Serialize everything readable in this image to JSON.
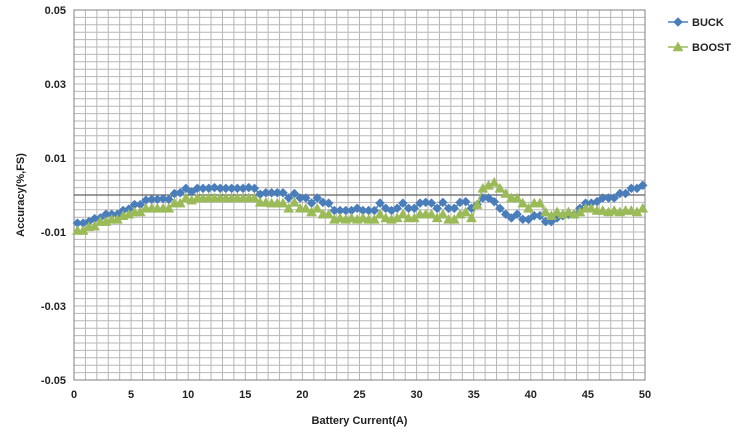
{
  "chart_data": {
    "type": "line",
    "xlabel": "Battery Current(A)",
    "ylabel": "Accuracy(%,FS)",
    "xlim": [
      0,
      50
    ],
    "ylim": [
      -0.05,
      0.05
    ],
    "x_ticks": [
      "0",
      "5",
      "10",
      "15",
      "20",
      "25",
      "30",
      "35",
      "40",
      "45",
      "50"
    ],
    "y_ticks": [
      "0.05",
      "0.03",
      "0.01",
      "-0.01",
      "-0.03",
      "-0.05"
    ],
    "x_tick_values": [
      0,
      5,
      10,
      15,
      20,
      25,
      30,
      35,
      40,
      45,
      50
    ],
    "y_tick_values": [
      0.05,
      0.03,
      0.01,
      -0.01,
      -0.03,
      -0.05
    ],
    "grid": true,
    "legend_position": "top-right",
    "series": [
      {
        "name": "BUCK",
        "color": "#4a7ebb",
        "marker": "diamond",
        "points": [
          [
            0.3,
            -0.0076
          ],
          [
            0.8,
            -0.0076
          ],
          [
            1.3,
            -0.0072
          ],
          [
            1.8,
            -0.0064
          ],
          [
            2.3,
            -0.0062
          ],
          [
            2.8,
            -0.0052
          ],
          [
            3.3,
            -0.0052
          ],
          [
            3.8,
            -0.0052
          ],
          [
            4.3,
            -0.0042
          ],
          [
            4.8,
            -0.0038
          ],
          [
            5.3,
            -0.0026
          ],
          [
            5.8,
            -0.0026
          ],
          [
            6.3,
            -0.0014
          ],
          [
            6.8,
            -0.0012
          ],
          [
            7.3,
            -0.0012
          ],
          [
            7.8,
            -0.001
          ],
          [
            8.3,
            -0.0012
          ],
          [
            8.8,
            0.0004
          ],
          [
            9.3,
            0.0006
          ],
          [
            9.8,
            0.0018
          ],
          [
            10.3,
            0.0008
          ],
          [
            10.8,
            0.0018
          ],
          [
            11.3,
            0.0018
          ],
          [
            11.8,
            0.0018
          ],
          [
            12.3,
            0.002
          ],
          [
            12.8,
            0.0018
          ],
          [
            13.3,
            0.0018
          ],
          [
            13.8,
            0.0018
          ],
          [
            14.3,
            0.0018
          ],
          [
            14.8,
            0.0018
          ],
          [
            15.3,
            0.002
          ],
          [
            15.8,
            0.0018
          ],
          [
            16.3,
            0.0002
          ],
          [
            16.8,
            0.0006
          ],
          [
            17.3,
            0.0006
          ],
          [
            17.8,
            0.0006
          ],
          [
            18.3,
            0.0006
          ],
          [
            18.8,
            -0.0008
          ],
          [
            19.3,
            0.0004
          ],
          [
            19.8,
            -0.0008
          ],
          [
            20.3,
            -0.0008
          ],
          [
            20.8,
            -0.0022
          ],
          [
            21.3,
            -0.0008
          ],
          [
            21.8,
            -0.002
          ],
          [
            22.3,
            -0.0022
          ],
          [
            22.8,
            -0.0042
          ],
          [
            23.3,
            -0.0042
          ],
          [
            23.8,
            -0.0042
          ],
          [
            24.3,
            -0.0042
          ],
          [
            24.8,
            -0.0036
          ],
          [
            25.3,
            -0.0042
          ],
          [
            25.8,
            -0.0042
          ],
          [
            26.3,
            -0.0042
          ],
          [
            26.8,
            -0.0022
          ],
          [
            27.3,
            -0.0036
          ],
          [
            27.8,
            -0.0042
          ],
          [
            28.3,
            -0.0036
          ],
          [
            28.8,
            -0.0022
          ],
          [
            29.3,
            -0.0036
          ],
          [
            29.8,
            -0.0036
          ],
          [
            30.3,
            -0.0022
          ],
          [
            30.8,
            -0.002
          ],
          [
            31.3,
            -0.0022
          ],
          [
            31.8,
            -0.0036
          ],
          [
            32.3,
            -0.002
          ],
          [
            32.8,
            -0.0036
          ],
          [
            33.3,
            -0.0036
          ],
          [
            33.8,
            -0.002
          ],
          [
            34.3,
            -0.0018
          ],
          [
            34.8,
            -0.0036
          ],
          [
            35.3,
            -0.0026
          ],
          [
            35.8,
            -0.0008
          ],
          [
            36.3,
            -0.0008
          ],
          [
            36.8,
            -0.0018
          ],
          [
            37.3,
            -0.0036
          ],
          [
            37.8,
            -0.0052
          ],
          [
            38.3,
            -0.0062
          ],
          [
            38.8,
            -0.0052
          ],
          [
            39.3,
            -0.0066
          ],
          [
            39.8,
            -0.0066
          ],
          [
            40.3,
            -0.0056
          ],
          [
            40.8,
            -0.0056
          ],
          [
            41.3,
            -0.0072
          ],
          [
            41.8,
            -0.0072
          ],
          [
            42.3,
            -0.0062
          ],
          [
            42.8,
            -0.0056
          ],
          [
            43.3,
            -0.0052
          ],
          [
            43.8,
            -0.0052
          ],
          [
            44.3,
            -0.0036
          ],
          [
            44.8,
            -0.0022
          ],
          [
            45.3,
            -0.0022
          ],
          [
            45.8,
            -0.0018
          ],
          [
            46.3,
            -0.0008
          ],
          [
            46.8,
            -0.0008
          ],
          [
            47.3,
            -0.0008
          ],
          [
            47.8,
            0.0004
          ],
          [
            48.3,
            0.0004
          ],
          [
            48.8,
            0.0018
          ],
          [
            49.3,
            0.0018
          ],
          [
            49.8,
            0.0026
          ]
        ]
      },
      {
        "name": "BOOST",
        "color": "#9bbb59",
        "marker": "triangle",
        "points": [
          [
            0.3,
            -0.0096
          ],
          [
            0.8,
            -0.0096
          ],
          [
            1.3,
            -0.0086
          ],
          [
            1.8,
            -0.0084
          ],
          [
            2.3,
            -0.0072
          ],
          [
            2.8,
            -0.0072
          ],
          [
            3.3,
            -0.0066
          ],
          [
            3.8,
            -0.0066
          ],
          [
            4.3,
            -0.0056
          ],
          [
            4.8,
            -0.0052
          ],
          [
            5.3,
            -0.0046
          ],
          [
            5.8,
            -0.0046
          ],
          [
            6.3,
            -0.0036
          ],
          [
            6.8,
            -0.0036
          ],
          [
            7.3,
            -0.0036
          ],
          [
            7.8,
            -0.0036
          ],
          [
            8.3,
            -0.0036
          ],
          [
            8.8,
            -0.0022
          ],
          [
            9.3,
            -0.0022
          ],
          [
            9.8,
            -0.0008
          ],
          [
            10.3,
            -0.0014
          ],
          [
            10.8,
            -0.0008
          ],
          [
            11.3,
            -0.0008
          ],
          [
            11.8,
            -0.0008
          ],
          [
            12.3,
            -0.0008
          ],
          [
            12.8,
            -0.0008
          ],
          [
            13.3,
            -0.0008
          ],
          [
            13.8,
            -0.0008
          ],
          [
            14.3,
            -0.0008
          ],
          [
            14.8,
            -0.0008
          ],
          [
            15.3,
            -0.0008
          ],
          [
            15.8,
            -0.0008
          ],
          [
            16.3,
            -0.002
          ],
          [
            16.8,
            -0.002
          ],
          [
            17.3,
            -0.0022
          ],
          [
            17.8,
            -0.0022
          ],
          [
            18.3,
            -0.0022
          ],
          [
            18.8,
            -0.0036
          ],
          [
            19.3,
            -0.002
          ],
          [
            19.8,
            -0.0036
          ],
          [
            20.3,
            -0.0036
          ],
          [
            20.8,
            -0.0046
          ],
          [
            21.3,
            -0.0036
          ],
          [
            21.8,
            -0.0052
          ],
          [
            22.3,
            -0.0052
          ],
          [
            22.8,
            -0.0066
          ],
          [
            23.3,
            -0.0062
          ],
          [
            23.8,
            -0.0066
          ],
          [
            24.3,
            -0.0062
          ],
          [
            24.8,
            -0.0066
          ],
          [
            25.3,
            -0.0062
          ],
          [
            25.8,
            -0.0066
          ],
          [
            26.3,
            -0.0066
          ],
          [
            26.8,
            -0.0052
          ],
          [
            27.3,
            -0.0062
          ],
          [
            27.8,
            -0.0066
          ],
          [
            28.3,
            -0.0062
          ],
          [
            28.8,
            -0.0052
          ],
          [
            29.3,
            -0.0062
          ],
          [
            29.8,
            -0.0062
          ],
          [
            30.3,
            -0.0052
          ],
          [
            30.8,
            -0.0052
          ],
          [
            31.3,
            -0.0052
          ],
          [
            31.8,
            -0.0062
          ],
          [
            32.3,
            -0.0052
          ],
          [
            32.8,
            -0.0066
          ],
          [
            33.3,
            -0.0066
          ],
          [
            33.8,
            -0.0052
          ],
          [
            34.3,
            -0.0046
          ],
          [
            34.8,
            -0.0062
          ],
          [
            35.3,
            -0.0026
          ],
          [
            35.8,
            0.0018
          ],
          [
            36.3,
            0.0026
          ],
          [
            36.8,
            0.0034
          ],
          [
            37.3,
            0.0018
          ],
          [
            37.8,
            0.0004
          ],
          [
            38.3,
            -0.0008
          ],
          [
            38.8,
            -0.0008
          ],
          [
            39.3,
            -0.0022
          ],
          [
            39.8,
            -0.0036
          ],
          [
            40.3,
            -0.0022
          ],
          [
            40.8,
            -0.0022
          ],
          [
            41.3,
            -0.0046
          ],
          [
            41.8,
            -0.0056
          ],
          [
            42.3,
            -0.0046
          ],
          [
            42.8,
            -0.0052
          ],
          [
            43.3,
            -0.0046
          ],
          [
            43.8,
            -0.0052
          ],
          [
            44.3,
            -0.0046
          ],
          [
            44.8,
            -0.0036
          ],
          [
            45.3,
            -0.0036
          ],
          [
            45.8,
            -0.0042
          ],
          [
            46.3,
            -0.0042
          ],
          [
            46.8,
            -0.0046
          ],
          [
            47.3,
            -0.0042
          ],
          [
            47.8,
            -0.0046
          ],
          [
            48.3,
            -0.0042
          ],
          [
            48.8,
            -0.0042
          ],
          [
            49.3,
            -0.0046
          ],
          [
            49.8,
            -0.0036
          ]
        ]
      }
    ]
  }
}
